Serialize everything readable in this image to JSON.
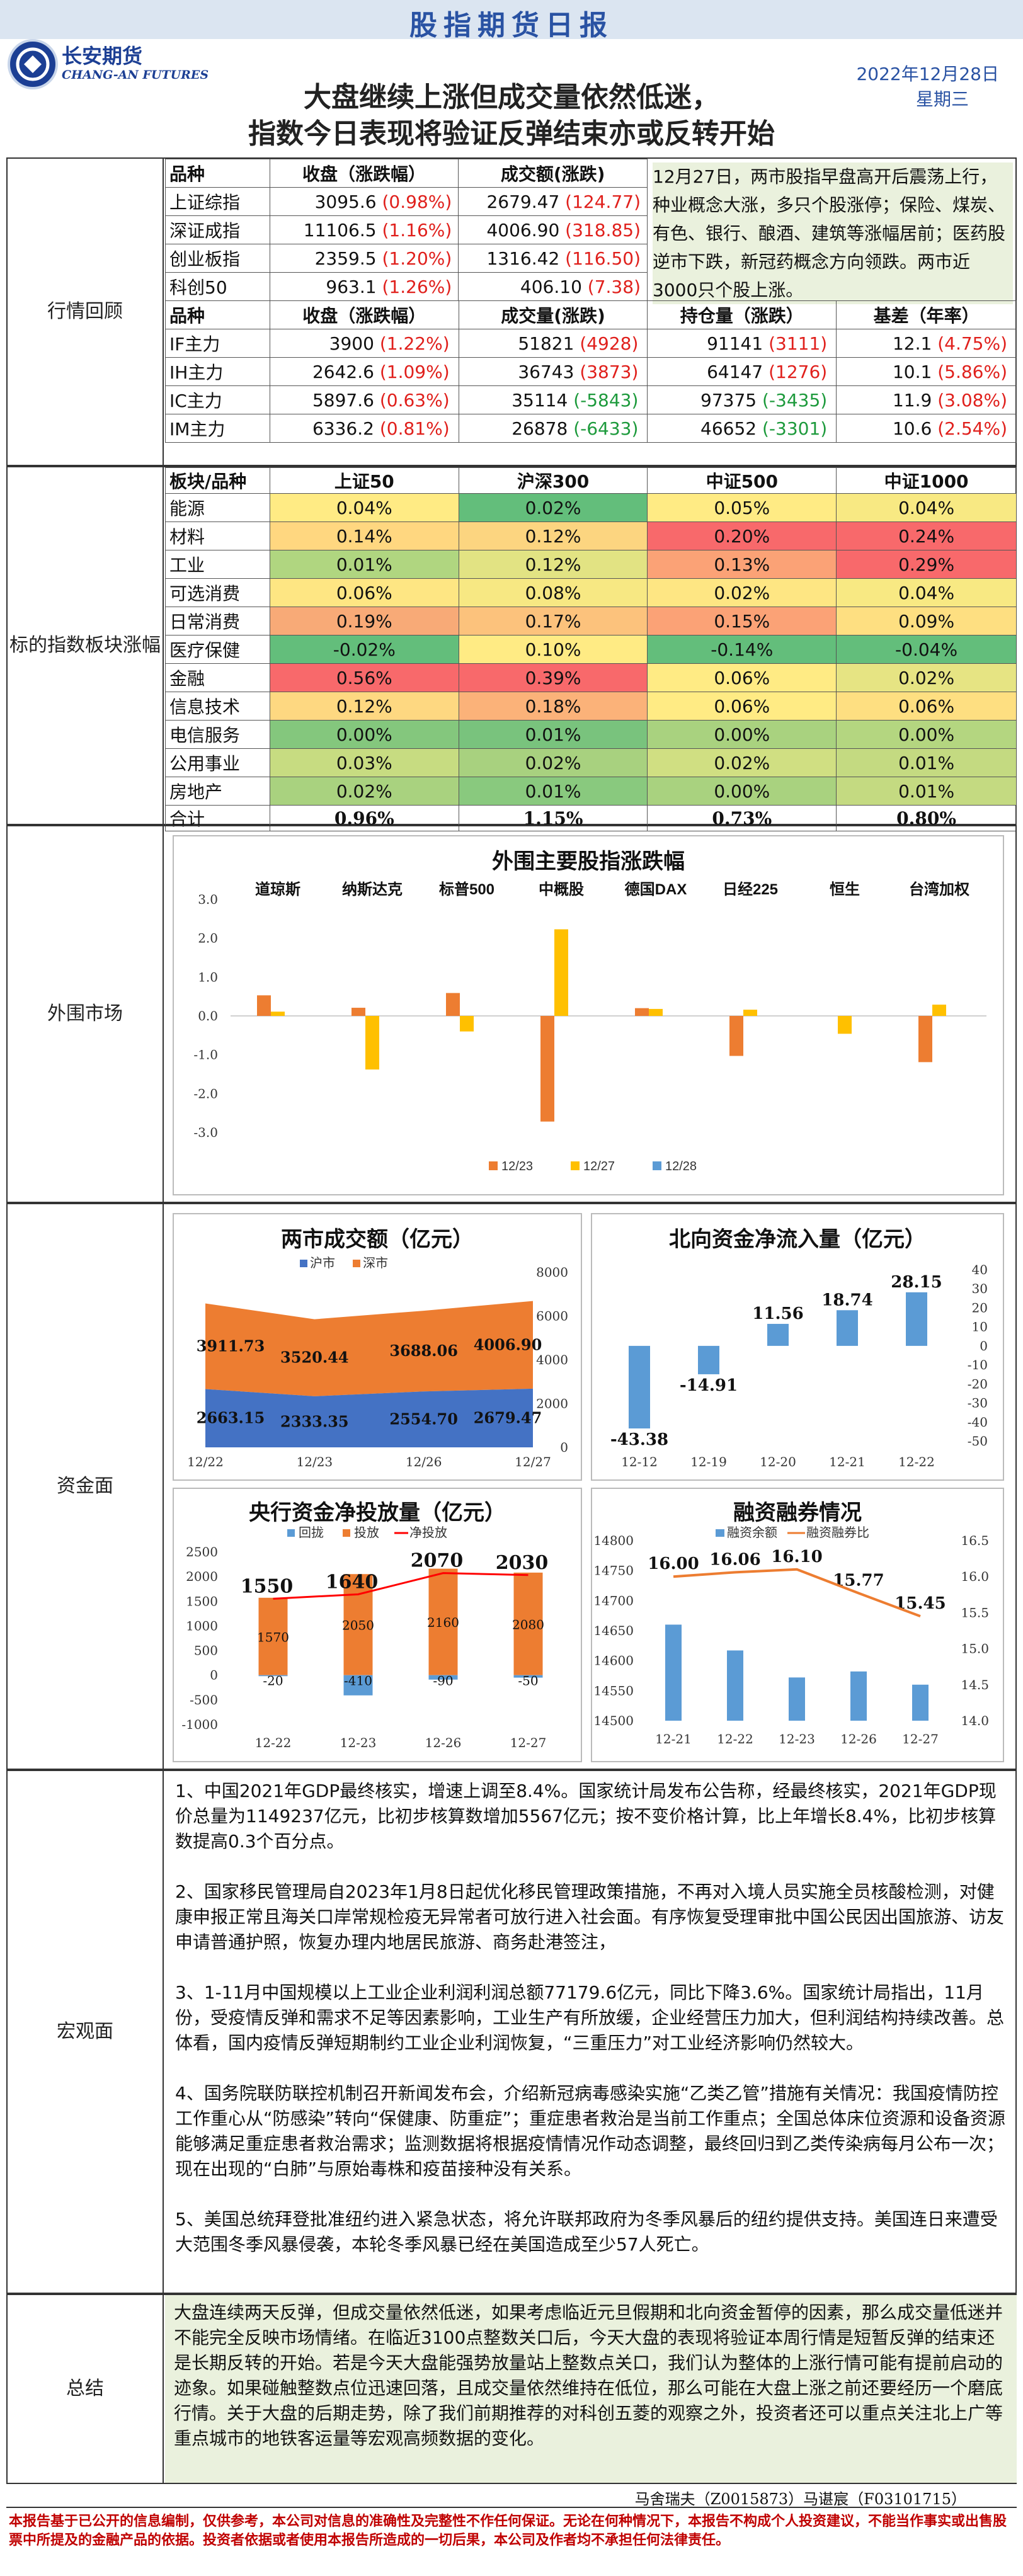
{
  "header": {
    "title": "股指期货日报",
    "logo_cn": "长安期货",
    "logo_en": "CHANG-AN FUTURES",
    "subtitle1": "大盘继续上涨但成交量依然低迷，",
    "subtitle2": "指数今日表现将验证反弹结束亦或反转开始",
    "date": "2022年12月28日",
    "weekday": "星期三"
  },
  "labels": {
    "review": "行情回顾",
    "sector": "标的指数板块涨幅",
    "overseas": "外围市场",
    "funds": "资金面",
    "macro": "宏观面",
    "summary": "总结"
  },
  "index_table": {
    "headers": [
      "品种",
      "收盘（涨跌幅）",
      "成交额(涨跌)"
    ],
    "rows": [
      {
        "name": "上证综指",
        "close": "3095.6",
        "pct": "(0.98%)",
        "amt": "2679.47",
        "chg": "(124.77)"
      },
      {
        "name": "深证成指",
        "close": "11106.5",
        "pct": "(1.16%)",
        "amt": "4006.90",
        "chg": "(318.85)"
      },
      {
        "name": "创业板指",
        "close": "2359.5",
        "pct": "(1.20%)",
        "amt": "1316.42",
        "chg": "(116.50)"
      },
      {
        "name": "科创50",
        "close": "963.1",
        "pct": "(1.26%)",
        "amt": "406.10",
        "chg": "(7.38)"
      }
    ]
  },
  "review_note": "12月27日，两市股指早盘高开后震荡上行，种业概念大涨，多只个股涨停；保险、煤炭、有色、银行、酿酒、建筑等涨幅居前；医药股逆市下跌，新冠药概念方向领跌。两市近3000只个股上涨。",
  "futures_table": {
    "headers": [
      "品种",
      "收盘（涨跌幅）",
      "成交量(涨跌)",
      "持仓量（涨跌）",
      "基差（年率）"
    ],
    "rows": [
      {
        "name": "IF主力",
        "close": "3900",
        "pct": "(1.22%)",
        "vol": "51821",
        "vchg": "(4928)",
        "oi": "91141",
        "oichg": "(3111)",
        "basis": "12.1",
        "rate": "(4.75%)",
        "vneg": false,
        "oineg": false
      },
      {
        "name": "IH主力",
        "close": "2642.6",
        "pct": "(1.09%)",
        "vol": "36743",
        "vchg": "(3873)",
        "oi": "64147",
        "oichg": "(1276)",
        "basis": "10.1",
        "rate": "(5.86%)",
        "vneg": false,
        "oineg": false
      },
      {
        "name": "IC主力",
        "close": "5897.6",
        "pct": "(0.63%)",
        "vol": "35114",
        "vchg": "(-5843)",
        "oi": "97375",
        "oichg": "(-3435)",
        "basis": "11.9",
        "rate": "(3.08%)",
        "vneg": true,
        "oineg": true
      },
      {
        "name": "IM主力",
        "close": "6336.2",
        "pct": "(0.81%)",
        "vol": "26878",
        "vchg": "(-6433)",
        "oi": "46652",
        "oichg": "(-3301)",
        "basis": "10.6",
        "rate": "(2.54%)",
        "vneg": true,
        "oineg": true
      }
    ]
  },
  "sector_table": {
    "headers": [
      "板块/品种",
      "上证50",
      "沪深300",
      "中证500",
      "中证1000"
    ],
    "rows": [
      {
        "name": "能源",
        "v": [
          "0.04%",
          "0.02%",
          "0.05%",
          "0.04%"
        ]
      },
      {
        "name": "材料",
        "v": [
          "0.14%",
          "0.12%",
          "0.20%",
          "0.24%"
        ]
      },
      {
        "name": "工业",
        "v": [
          "0.01%",
          "0.12%",
          "0.13%",
          "0.29%"
        ]
      },
      {
        "name": "可选消费",
        "v": [
          "0.06%",
          "0.08%",
          "0.02%",
          "0.04%"
        ]
      },
      {
        "name": "日常消费",
        "v": [
          "0.19%",
          "0.17%",
          "0.15%",
          "0.09%"
        ]
      },
      {
        "name": "医疗保健",
        "v": [
          "-0.02%",
          "0.10%",
          "-0.14%",
          "-0.04%"
        ]
      },
      {
        "name": "金融",
        "v": [
          "0.56%",
          "0.39%",
          "0.06%",
          "0.02%"
        ]
      },
      {
        "name": "信息技术",
        "v": [
          "0.12%",
          "0.18%",
          "0.06%",
          "0.06%"
        ]
      },
      {
        "name": "电信服务",
        "v": [
          "0.00%",
          "0.01%",
          "0.00%",
          "0.00%"
        ]
      },
      {
        "name": "公用事业",
        "v": [
          "0.03%",
          "0.02%",
          "0.02%",
          "0.01%"
        ]
      },
      {
        "name": "房地产",
        "v": [
          "0.02%",
          "0.01%",
          "0.00%",
          "0.01%"
        ]
      }
    ],
    "total": {
      "name": "合计",
      "v": [
        "0.96%",
        "1.15%",
        "0.73%",
        "0.80%"
      ]
    },
    "colors": [
      [
        "#ffeb84",
        "#63be7b",
        "#ffeb84",
        "#f8e983"
      ],
      [
        "#ffd780",
        "#fcd580",
        "#f8696b",
        "#f8696b"
      ],
      [
        "#b0d680",
        "#e2e383",
        "#fba276",
        "#f8696b"
      ],
      [
        "#fee683",
        "#f7e883",
        "#fee683",
        "#f8e983"
      ],
      [
        "#f8aa77",
        "#fcc27c",
        "#fba276",
        "#fedf81"
      ],
      [
        "#63be7b",
        "#ffeb84",
        "#63be7b",
        "#63be7b"
      ],
      [
        "#f8696b",
        "#f8696b",
        "#ffeb84",
        "#e6e483"
      ],
      [
        "#fed881",
        "#fbb279",
        "#ffeb84",
        "#fedf81"
      ],
      [
        "#84c77d",
        "#79c37d",
        "#a9d27f",
        "#b4d680"
      ],
      [
        "#c7dc81",
        "#a8d17f",
        "#d0df82",
        "#c4da81"
      ],
      [
        "#a9d27f",
        "#89c97e",
        "#a9d27f",
        "#c4da81"
      ]
    ]
  },
  "chart_data": [
    {
      "type": "bar",
      "title": "外围主要股指涨跌幅",
      "categories": [
        "道琼斯",
        "纳斯达克",
        "标普500",
        "中概股",
        "德国DAX",
        "日经225",
        "恒生",
        "台湾加权"
      ],
      "series": [
        {
          "name": "12/23",
          "values": [
            0.53,
            0.21,
            0.59,
            -2.72,
            0.2,
            -1.03,
            0,
            -1.19
          ],
          "color": "#ed7d31"
        },
        {
          "name": "12/27",
          "values": [
            0.11,
            -1.38,
            -0.4,
            2.23,
            0.18,
            0.16,
            -0.46,
            0.29
          ],
          "color": "#ffc000"
        },
        {
          "name": "12/28",
          "values": [
            0,
            0,
            0,
            0,
            0,
            0,
            0,
            0
          ],
          "color": "#5b9bd5"
        }
      ],
      "ylim": [
        -3,
        3
      ],
      "yticks": [
        "3.0",
        "2.0",
        "1.0",
        "0.0",
        "-1.0",
        "-2.0",
        "-3.0"
      ]
    },
    {
      "type": "area",
      "title": "两市成交额（亿元）",
      "categories": [
        "12/22",
        "12/23",
        "12/26",
        "12/27"
      ],
      "series": [
        {
          "name": "沪市",
          "values": [
            2663.15,
            2333.35,
            2554.7,
            2679.47
          ],
          "labels": [
            "2663.15",
            "2333.35",
            "2554.70",
            "2679.47"
          ],
          "color": "#4472c4"
        },
        {
          "name": "深市",
          "values": [
            3911.73,
            3520.44,
            3688.06,
            4006.9
          ],
          "labels": [
            "3911.73",
            "3520.44",
            "3688.06",
            "4006.90"
          ],
          "color": "#ed7d31"
        }
      ],
      "ylim": [
        0,
        8000
      ],
      "yticks": [
        "8000",
        "6000",
        "4000",
        "2000",
        "0"
      ]
    },
    {
      "type": "bar",
      "title": "北向资金净流入量（亿元）",
      "categories": [
        "12-12",
        "12-19",
        "12-20",
        "12-21",
        "12-22"
      ],
      "values": [
        -43.38,
        -14.91,
        11.56,
        18.74,
        28.15
      ],
      "labels": [
        "-43.38",
        "-14.91",
        "11.56",
        "18.74",
        "28.15"
      ],
      "color": "#5b9bd5",
      "ylim": [
        -50,
        40
      ],
      "yticks": [
        "40",
        "30",
        "20",
        "10",
        "0",
        "-10",
        "-20",
        "-30",
        "-40",
        "-50"
      ]
    },
    {
      "type": "bar",
      "title": "央行资金净投放量（亿元）",
      "categories": [
        "12-22",
        "12-23",
        "12-26",
        "12-27"
      ],
      "series": [
        {
          "name": "回拢",
          "values": [
            -20,
            -410,
            -90,
            -50
          ],
          "labels": [
            "-20",
            "-410",
            "-90",
            "-50"
          ],
          "color": "#5b9bd5"
        },
        {
          "name": "投放",
          "values": [
            1570,
            2050,
            2160,
            2080
          ],
          "labels": [
            "1570",
            "2050",
            "2160",
            "2080"
          ],
          "color": "#ed7d31"
        },
        {
          "name": "净投放",
          "values": [
            1550,
            1640,
            2070,
            2030
          ],
          "labels": [
            "1550",
            "1640",
            "2070",
            "2030"
          ],
          "color": "#ff0000"
        }
      ],
      "ylim": [
        -1000,
        2500
      ],
      "yticks": [
        "2500",
        "2000",
        "1500",
        "1000",
        "500",
        "0",
        "-500",
        "-1000"
      ]
    },
    {
      "type": "bar",
      "title": "融资融券情况",
      "categories": [
        "12-21",
        "12-22",
        "12-23",
        "12-26",
        "12-27"
      ],
      "series": [
        {
          "name": "融资余额",
          "values": [
            14660,
            14617,
            14572,
            14582,
            14560
          ],
          "color": "#5b9bd5"
        },
        {
          "name": "融资融券比",
          "values": [
            16.0,
            16.06,
            16.1,
            15.77,
            15.45
          ],
          "labels": [
            "16.00",
            "16.06",
            "16.10",
            "15.77",
            "15.45"
          ],
          "color": "#ed7d31"
        }
      ],
      "ylim": [
        14500,
        14800
      ],
      "y2lim": [
        14.0,
        16.5
      ],
      "yticks": [
        "14800",
        "14750",
        "14700",
        "14650",
        "14600",
        "14550",
        "14500"
      ],
      "y2ticks": [
        "16.5",
        "16.0",
        "15.5",
        "15.0",
        "14.5",
        "14.0"
      ]
    }
  ],
  "macro": [
    "1、中国2021年GDP最终核实，增速上调至8.4%。国家统计局发布公告称，经最终核实，2021年GDP现价总量为1149237亿元，比初步核算数增加5567亿元；按不变价格计算，比上年增长8.4%，比初步核算数提高0.3个百分点。",
    "2、国家移民管理局自2023年1月8日起优化移民管理政策措施，不再对入境人员实施全员核酸检测，对健康申报正常且海关口岸常规检疫无异常者可放行进入社会面。有序恢复受理审批中国公民因出国旅游、访友申请普通护照，恢复办理内地居民旅游、商务赴港签注，",
    "3、1-11月中国规模以上工业企业利润利润总额77179.6亿元，同比下降3.6%。国家统计局指出，11月份，受疫情反弹和需求不足等因素影响，工业生产有所放缓，企业经营压力加大，但利润结构持续改善。总体看，国内疫情反弹短期制约工业企业利润恢复，“三重压力”对工业经济影响仍然较大。",
    "4、国务院联防联控机制召开新闻发布会，介绍新冠病毒感染实施“乙类乙管”措施有关情况：我国疫情防控工作重心从“防感染”转向“保健康、防重症”；重症患者救治是当前工作重点；全国总体床位资源和设备资源能够满足重症患者救治需求；监测数据将根据疫情情况作动态调整，最终回归到乙类传染病每月公布一次；现在出现的“白肺”与原始毒株和疫苗接种没有关系。",
    "5、美国总统拜登批准纽约进入紧急状态，将允许联邦政府为冬季风暴后的纽约提供支持。美国连日来遭受大范围冬季风暴侵袭，本轮冬季风暴已经在美国造成至少57人死亡。"
  ],
  "summary": "大盘连续两天反弹，但成交量依然低迷，如果考虑临近元旦假期和北向资金暂停的因素，那么成交量低迷并不能完全反映市场情绪。在临近3100点整数关口后，今天大盘的表现将验证本周行情是短暂反弹的结束还是长期反转的开始。若是今天大盘能强势放量站上整数点关口，我们认为整体的上涨行情可能有提前启动的迹象。如果碰触整数点位迅速回落，且成交量依然维持在低位，那么可能在大盘上涨之前还要经历一个磨底行情。关于大盘的后期走势，除了我们前期推荐的对科创五菱的观察之外，投资者还可以重点关注北上广等重点城市的地铁客运量等宏观高频数据的变化。",
  "footer": {
    "analysts": "马舍瑞夫（Z0015873）马谌宸（F03101715）",
    "disclaimer": "本报告基于已公开的信息编制，仅供参考，本公司对信息的准确性及完整性不作任何保证。无论在何种情况下，本报告不构成个人投资建议，不能当作事实或出售股票中所提及的金融产品的依据。投资者依据或者使用本报告所造成的一切后果，本公司及作者均不承担任何法律责任。"
  }
}
